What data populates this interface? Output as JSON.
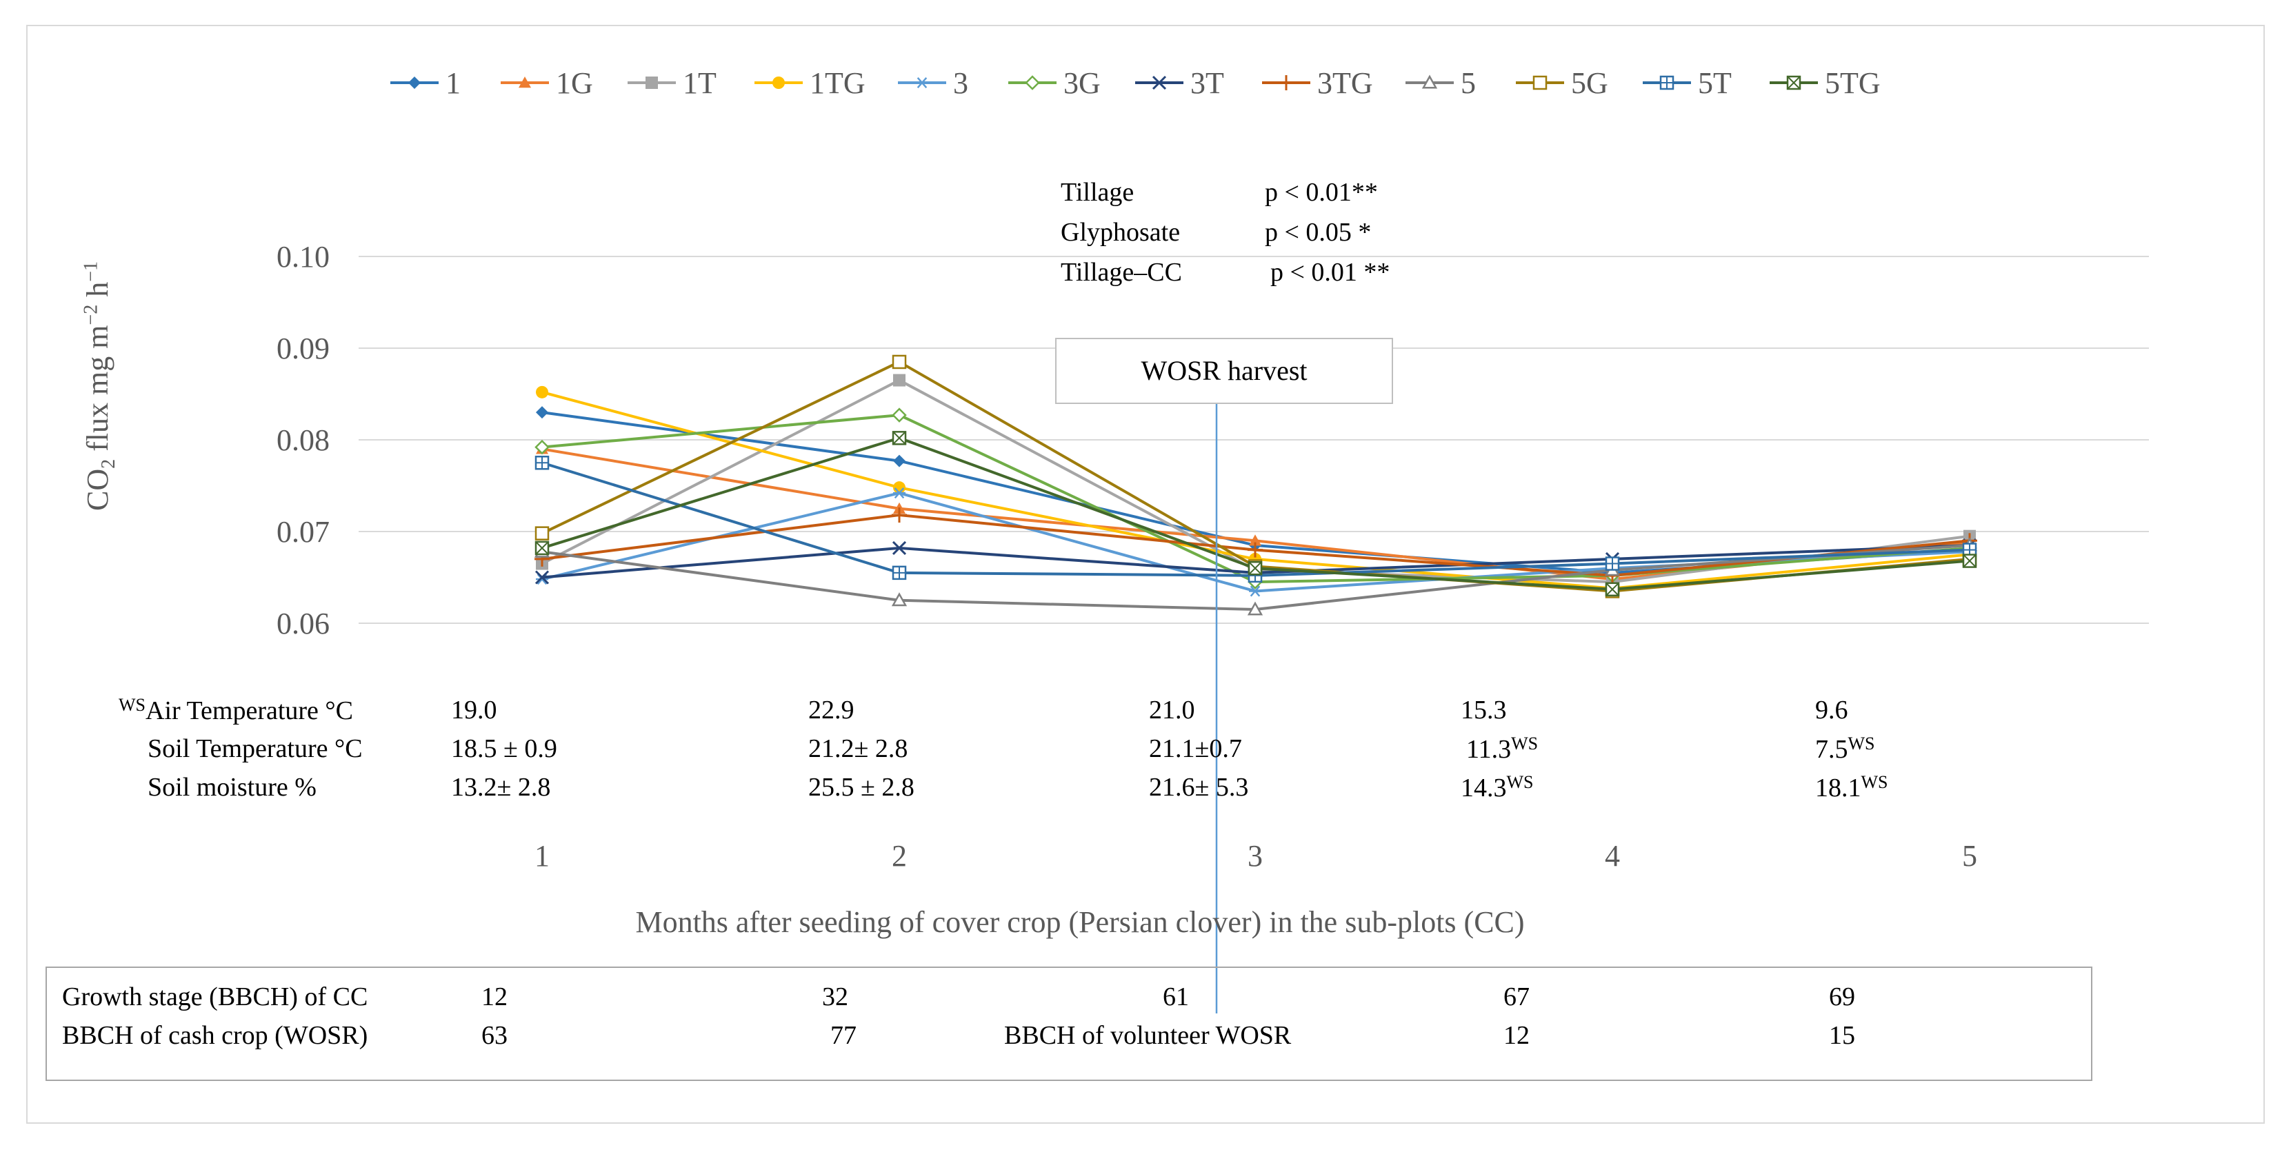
{
  "chart_data": {
    "type": "line",
    "xlabel": "Months after seeding of cover crop (Persian clover) in the sub-plots (CC)",
    "ylabel": {
      "main": "CO",
      "sub": "2",
      "rest": " flux mg m",
      "sup1": "−2",
      "mid": " h",
      "sup2": "−1"
    },
    "ylim": [
      0.06,
      0.1
    ],
    "yticks": [
      "0.06",
      "0.07",
      "0.08",
      "0.09",
      "0.10"
    ],
    "categories": [
      "1",
      "2",
      "3",
      "4",
      "5"
    ],
    "grid": true,
    "legend_position": "top",
    "series": [
      {
        "name": "1",
        "color": "#2e75b6",
        "marker": "diamond",
        "values": [
          0.083,
          0.0777,
          0.0685,
          0.0655,
          0.068
        ]
      },
      {
        "name": "1G",
        "color": "#ed7d31",
        "marker": "triangle",
        "values": [
          0.079,
          0.0725,
          0.069,
          0.0648,
          0.0688
        ]
      },
      {
        "name": "1T",
        "color": "#a5a5a5",
        "marker": "square",
        "values": [
          0.0665,
          0.0865,
          0.0658,
          0.0645,
          0.0695
        ]
      },
      {
        "name": "1TG",
        "color": "#ffc000",
        "marker": "circle",
        "values": [
          0.0852,
          0.0748,
          0.067,
          0.0638,
          0.0675
        ]
      },
      {
        "name": "3",
        "color": "#5b9bd5",
        "marker": "asterisk",
        "values": [
          0.0648,
          0.0742,
          0.0635,
          0.066,
          0.0678
        ]
      },
      {
        "name": "3G",
        "color": "#70ad47",
        "marker": "diamond-open",
        "values": [
          0.0792,
          0.0827,
          0.0645,
          0.0652,
          0.0682
        ]
      },
      {
        "name": "3T",
        "color": "#264478",
        "marker": "x",
        "values": [
          0.065,
          0.0682,
          0.0655,
          0.067,
          0.0685
        ]
      },
      {
        "name": "3TG",
        "color": "#c55a11",
        "marker": "plus",
        "values": [
          0.067,
          0.0718,
          0.068,
          0.0652,
          0.069
        ]
      },
      {
        "name": "5",
        "color": "#7f7f7f",
        "marker": "triangle-open",
        "values": [
          0.0678,
          0.0625,
          0.0615,
          0.0658,
          0.0685
        ]
      },
      {
        "name": "5G",
        "color": "#9e7c0c",
        "marker": "square-open",
        "values": [
          0.0698,
          0.0885,
          0.0662,
          0.0635,
          0.067
        ]
      },
      {
        "name": "5T",
        "color": "#2e6ea6",
        "marker": "square-plus",
        "values": [
          0.0775,
          0.0655,
          0.0652,
          0.0665,
          0.068
        ]
      },
      {
        "name": "5TG",
        "color": "#43682b",
        "marker": "square-x",
        "values": [
          0.0682,
          0.0802,
          0.066,
          0.0637,
          0.0668
        ]
      }
    ],
    "annotations": {
      "harvest_label": "WOSR harvest",
      "harvest_x": 3
    }
  },
  "stats": [
    {
      "label": "Tillage",
      "value": "p < 0.01**"
    },
    {
      "label": "Glyphosate",
      "value": "p < 0.05 *"
    },
    {
      "label": "Tillage–CC",
      "value": "p < 0.01 **"
    }
  ],
  "conditions": {
    "air_temp": {
      "label": "Air Temperature °C",
      "prefix_sup": "WS",
      "values": [
        "19.0",
        "22.9",
        "21.0",
        "15.3",
        "9.6"
      ]
    },
    "soil_temp": {
      "label": "Soil Temperature °C",
      "values": [
        "18.5 ± 0.9",
        "21.2± 2.8",
        "21.1±0.7",
        "11.3",
        "7.5"
      ],
      "sups": [
        "",
        "",
        "",
        "WS",
        "WS"
      ]
    },
    "soil_moist": {
      "label": "Soil moisture %",
      "values": [
        "13.2± 2.8",
        "25.5 ± 2.8",
        "21.6± 5.3",
        "14.3",
        "18.1"
      ],
      "sups": [
        "",
        "",
        "",
        "WS",
        "WS"
      ]
    }
  },
  "stages": {
    "cc_label": "Growth stage (BBCH) of CC",
    "cc_values": [
      "12",
      "32",
      "61",
      "67",
      "69"
    ],
    "cash_label": "BBCH of cash crop (WOSR)",
    "cash_values": [
      "63",
      "77"
    ],
    "volunteer_label": "BBCH of volunteer WOSR",
    "volunteer_values": [
      "12",
      "15"
    ]
  }
}
